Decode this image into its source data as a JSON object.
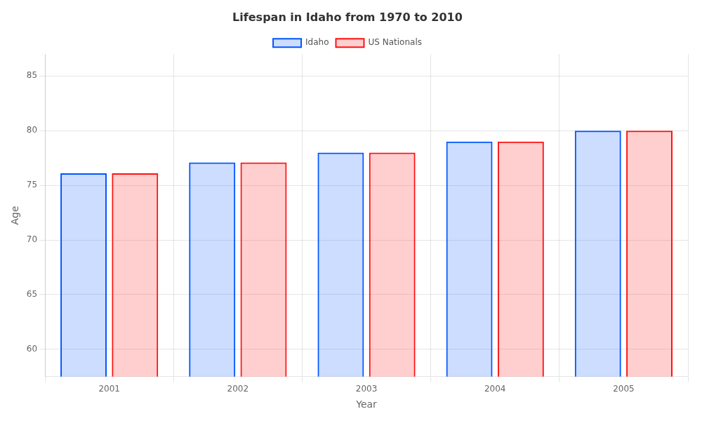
{
  "chart_data": {
    "type": "bar",
    "title": "Lifespan in Idaho from 1970 to 2010",
    "xlabel": "Year",
    "ylabel": "Age",
    "categories": [
      "2001",
      "2002",
      "2003",
      "2004",
      "2005"
    ],
    "series": [
      {
        "name": "Idaho",
        "color": "#0055ff",
        "values": [
          76.1,
          77.1,
          78.0,
          79.0,
          80.0
        ]
      },
      {
        "name": "US Nationals",
        "color": "#ff1111",
        "values": [
          76.1,
          77.1,
          78.0,
          79.0,
          80.0
        ]
      }
    ],
    "ylim": [
      57.5,
      87
    ],
    "yticks": [
      60,
      65,
      70,
      75,
      80,
      85
    ],
    "grid": true,
    "legend": "top"
  }
}
